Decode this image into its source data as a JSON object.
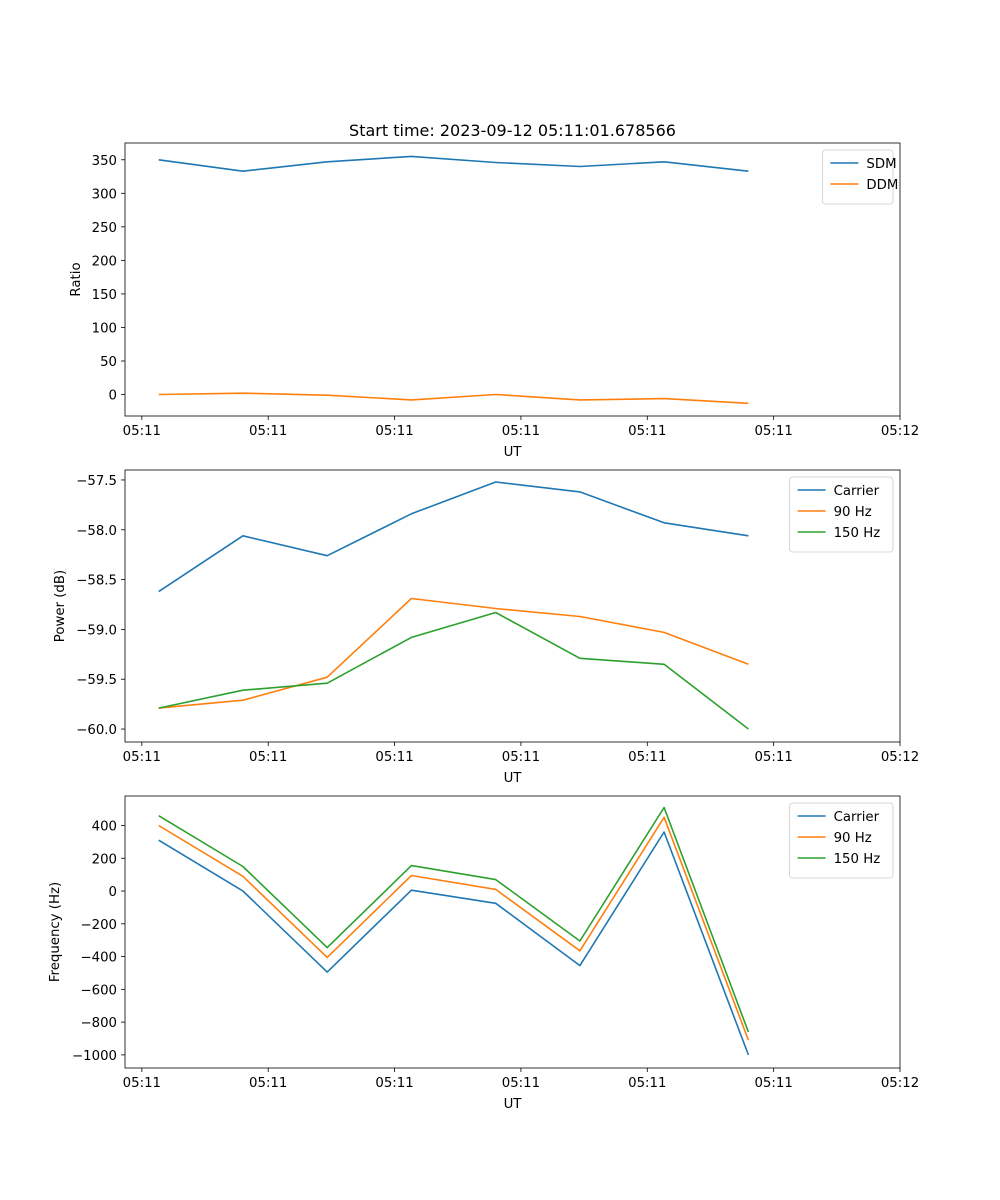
{
  "chart_data": [
    {
      "type": "line",
      "title": "Start time: 2023-09-12 05:11:01.678566",
      "xlabel": "UT",
      "ylabel": "Ratio",
      "x": [
        1,
        2,
        3,
        4,
        5,
        6,
        7,
        8
      ],
      "xticks": [
        0.8,
        2.3,
        3.8,
        5.3,
        6.8,
        8.3,
        9.8
      ],
      "xtick_labels": [
        "05:11",
        "05:11",
        "05:11",
        "05:11",
        "05:11",
        "05:11",
        "05:12"
      ],
      "xlim": [
        0.6,
        9.8
      ],
      "ylim": [
        -32,
        375
      ],
      "yticks": [
        0,
        50,
        100,
        150,
        200,
        250,
        300,
        350
      ],
      "ytick_labels": [
        "0",
        "50",
        "100",
        "150",
        "200",
        "250",
        "300",
        "350"
      ],
      "legend_position": "top-right",
      "series": [
        {
          "name": "SDM",
          "color": "#1f77b4",
          "values": [
            350,
            333,
            347,
            355,
            346,
            340,
            347,
            333
          ]
        },
        {
          "name": "DDM",
          "color": "#ff7f0e",
          "values": [
            0,
            2,
            -1,
            -8,
            0,
            -8,
            -6,
            -13
          ]
        }
      ]
    },
    {
      "type": "line",
      "xlabel": "UT",
      "ylabel": "Power (dB)",
      "x": [
        1,
        2,
        3,
        4,
        5,
        6,
        7,
        8
      ],
      "xticks": [
        0.8,
        2.3,
        3.8,
        5.3,
        6.8,
        8.3,
        9.8
      ],
      "xtick_labels": [
        "05:11",
        "05:11",
        "05:11",
        "05:11",
        "05:11",
        "05:11",
        "05:12"
      ],
      "xlim": [
        0.6,
        9.8
      ],
      "ylim": [
        -60.13,
        -57.4
      ],
      "yticks": [
        -60.0,
        -59.5,
        -59.0,
        -58.5,
        -58.0,
        -57.5
      ],
      "ytick_labels": [
        "−60.0",
        "−59.5",
        "−59.0",
        "−58.5",
        "−58.0",
        "−57.5"
      ],
      "legend_position": "top-right",
      "series": [
        {
          "name": "Carrier",
          "color": "#1f77b4",
          "values": [
            -58.62,
            -58.06,
            -58.26,
            -57.84,
            -57.52,
            -57.62,
            -57.93,
            -58.06
          ]
        },
        {
          "name": "90 Hz",
          "color": "#ff7f0e",
          "values": [
            -59.79,
            -59.71,
            -59.48,
            -58.69,
            -58.79,
            -58.87,
            -59.03,
            -59.35
          ]
        },
        {
          "name": "150 Hz",
          "color": "#2ca02c",
          "values": [
            -59.79,
            -59.61,
            -59.54,
            -59.08,
            -58.83,
            -59.29,
            -59.35,
            -60.0
          ]
        }
      ]
    },
    {
      "type": "line",
      "xlabel": "UT",
      "ylabel": "Frequency (Hz)",
      "x": [
        1,
        2,
        3,
        4,
        5,
        6,
        7,
        8
      ],
      "xticks": [
        0.8,
        2.3,
        3.8,
        5.3,
        6.8,
        8.3,
        9.8
      ],
      "xtick_labels": [
        "05:11",
        "05:11",
        "05:11",
        "05:11",
        "05:11",
        "05:11",
        "05:12"
      ],
      "xlim": [
        0.6,
        9.8
      ],
      "ylim": [
        -1080,
        580
      ],
      "yticks": [
        -1000,
        -800,
        -600,
        -400,
        -200,
        0,
        200,
        400
      ],
      "ytick_labels": [
        "−1000",
        "−800",
        "−600",
        "−400",
        "−200",
        "0",
        "200",
        "400"
      ],
      "legend_position": "top-right",
      "series": [
        {
          "name": "Carrier",
          "color": "#1f77b4",
          "values": [
            310,
            0,
            -495,
            5,
            -75,
            -455,
            360,
            -1000
          ]
        },
        {
          "name": "90 Hz",
          "color": "#ff7f0e",
          "values": [
            400,
            90,
            -405,
            95,
            10,
            -365,
            450,
            -910
          ]
        },
        {
          "name": "150 Hz",
          "color": "#2ca02c",
          "values": [
            460,
            150,
            -345,
            155,
            70,
            -305,
            510,
            -860
          ]
        }
      ]
    }
  ]
}
